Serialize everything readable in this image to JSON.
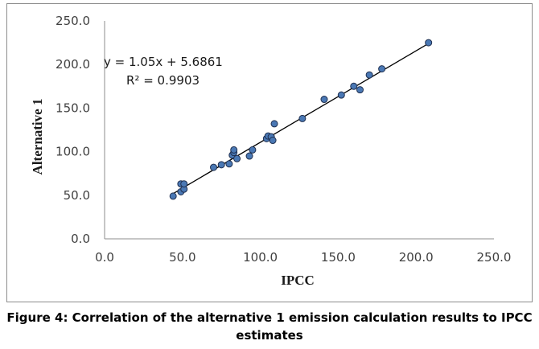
{
  "caption": "Figure 4: Correlation of the alternative 1 emission calculation results to IPCC estimates",
  "colors": {
    "marker_fill": "#4a78b4",
    "marker_stroke": "#1f2f4f",
    "trendline": "#000000",
    "axis": "#8c8c8c"
  },
  "chart_data": {
    "type": "scatter",
    "xlabel": "IPCC",
    "ylabel": "Alternative 1",
    "xlim": [
      0,
      250
    ],
    "ylim": [
      0,
      250
    ],
    "x_ticks": [
      "0.0",
      "50.0",
      "100.0",
      "150.0",
      "200.0",
      "250.0"
    ],
    "y_ticks": [
      "0.0",
      "50.0",
      "100.0",
      "150.0",
      "200.0",
      "250.0"
    ],
    "grid": false,
    "legend": "none",
    "trendline": {
      "slope": 1.05,
      "intercept": 5.6861,
      "x_range": [
        44,
        208
      ]
    },
    "annotations": [
      "y = 1.05x + 5.6861",
      "R² = 0.9903"
    ],
    "points": [
      [
        44,
        49
      ],
      [
        49,
        54
      ],
      [
        49,
        63
      ],
      [
        51,
        57
      ],
      [
        51,
        63
      ],
      [
        70,
        82
      ],
      [
        75,
        85
      ],
      [
        80,
        86
      ],
      [
        82,
        96
      ],
      [
        83,
        99
      ],
      [
        83,
        102
      ],
      [
        85,
        92
      ],
      [
        93,
        95
      ],
      [
        95,
        102
      ],
      [
        104,
        115
      ],
      [
        105,
        118
      ],
      [
        107,
        117
      ],
      [
        108,
        113
      ],
      [
        109,
        132
      ],
      [
        127,
        138
      ],
      [
        141,
        160
      ],
      [
        152,
        165
      ],
      [
        160,
        175
      ],
      [
        164,
        171
      ],
      [
        170,
        188
      ],
      [
        178,
        195
      ],
      [
        208,
        225
      ]
    ]
  }
}
